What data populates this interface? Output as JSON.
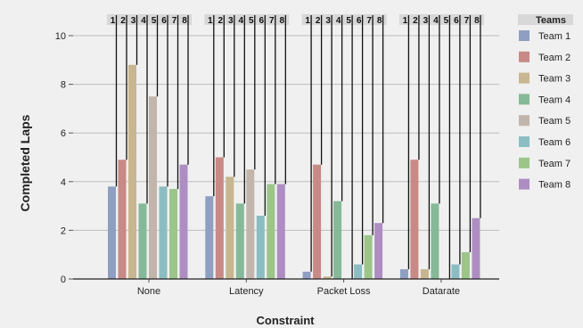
{
  "chart_data": {
    "type": "bar",
    "xlabel": "Constraint",
    "ylabel": "Completed Laps",
    "categories": [
      "None",
      "Latency",
      "Packet Loss",
      "Datarate"
    ],
    "ylim": [
      0,
      10
    ],
    "yticks": [
      "0",
      "2",
      "4",
      "6",
      "8",
      "10"
    ],
    "grid": true,
    "legend_title": "Teams",
    "legend_position": "right",
    "bar_index_labels": [
      "1",
      "2",
      "3",
      "4",
      "5",
      "6",
      "7",
      "8"
    ],
    "series": [
      {
        "name": "Team 1",
        "color": "#8f9fc1",
        "values": [
          3.8,
          3.4,
          0.3,
          0.4
        ]
      },
      {
        "name": "Team 2",
        "color": "#c88a86",
        "values": [
          4.9,
          5.0,
          4.7,
          4.9
        ]
      },
      {
        "name": "Team 3",
        "color": "#c7b68f",
        "values": [
          8.8,
          4.2,
          0.1,
          0.4
        ]
      },
      {
        "name": "Team 4",
        "color": "#86b998",
        "values": [
          3.1,
          3.1,
          3.2,
          3.1
        ]
      },
      {
        "name": "Team 5",
        "color": "#c2b5ab",
        "values": [
          7.5,
          4.5,
          0.0,
          0.0
        ]
      },
      {
        "name": "Team 6",
        "color": "#8cbdc2",
        "values": [
          3.8,
          2.6,
          0.6,
          0.6
        ]
      },
      {
        "name": "Team 7",
        "color": "#9cc58a",
        "values": [
          3.7,
          3.9,
          1.8,
          1.1
        ]
      },
      {
        "name": "Team 8",
        "color": "#ae8ec2",
        "values": [
          4.7,
          3.9,
          2.3,
          2.5
        ]
      }
    ]
  }
}
